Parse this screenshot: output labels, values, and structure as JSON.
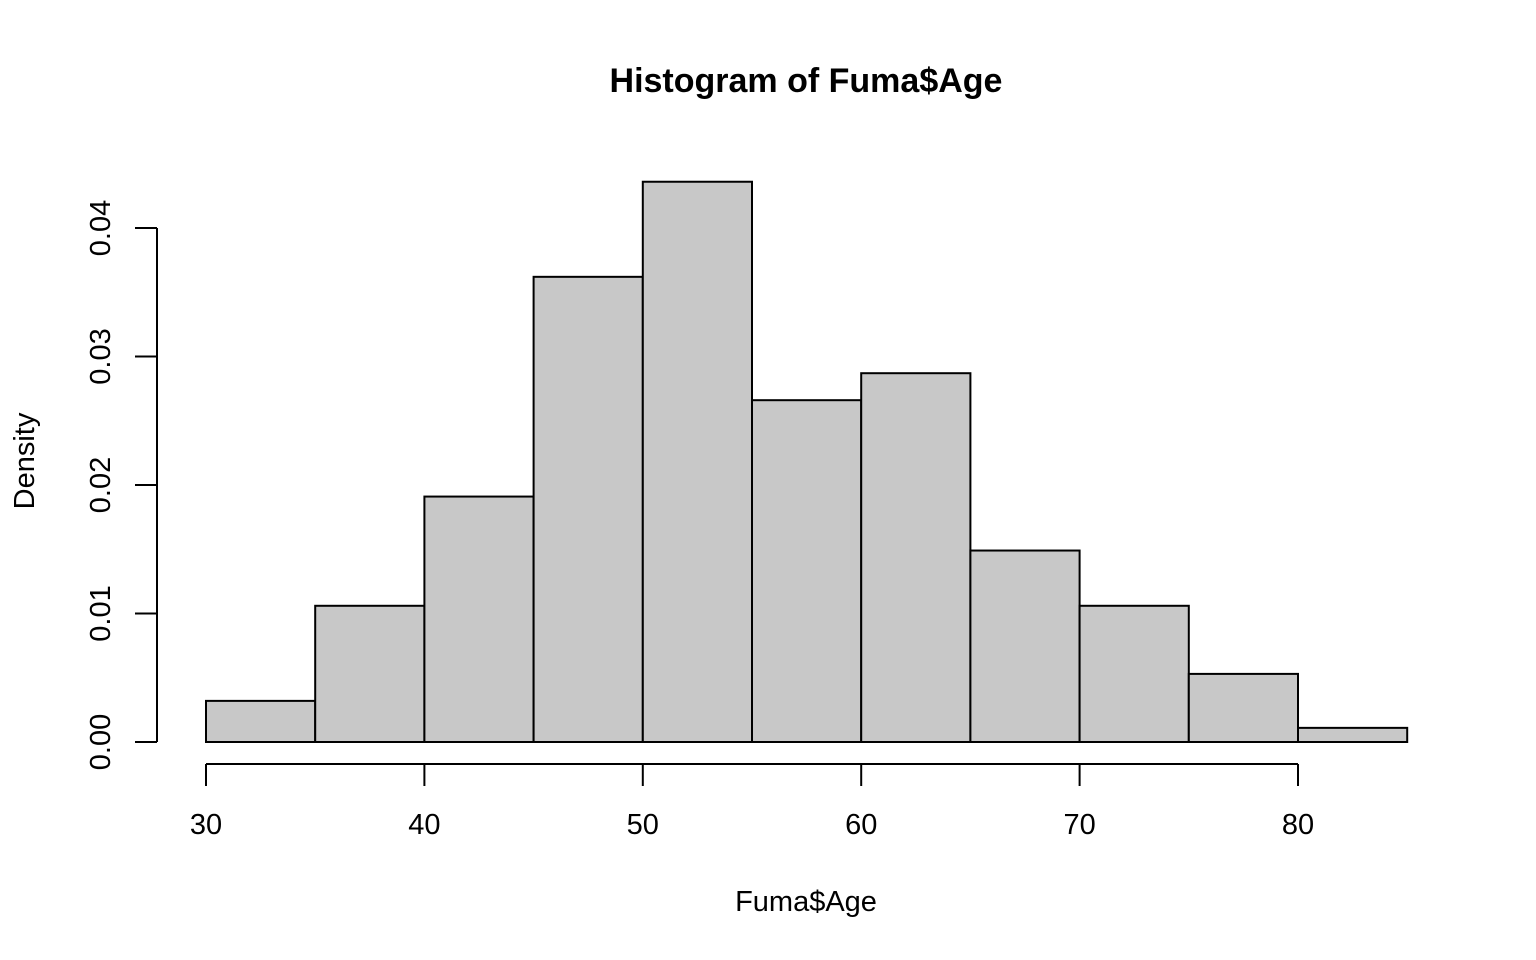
{
  "chart_data": {
    "type": "bar",
    "title": "Histogram of Fuma$Age",
    "xlabel": "Fuma$Age",
    "ylabel": "Density",
    "bins": [
      {
        "start": 30,
        "end": 35,
        "density": 0.0032
      },
      {
        "start": 35,
        "end": 40,
        "density": 0.0106
      },
      {
        "start": 40,
        "end": 45,
        "density": 0.0191
      },
      {
        "start": 45,
        "end": 50,
        "density": 0.0362
      },
      {
        "start": 50,
        "end": 55,
        "density": 0.0436
      },
      {
        "start": 55,
        "end": 60,
        "density": 0.0266
      },
      {
        "start": 60,
        "end": 65,
        "density": 0.0287
      },
      {
        "start": 65,
        "end": 70,
        "density": 0.0149
      },
      {
        "start": 70,
        "end": 75,
        "density": 0.0106
      },
      {
        "start": 75,
        "end": 80,
        "density": 0.0053
      },
      {
        "start": 80,
        "end": 85,
        "density": 0.0011
      }
    ],
    "x_ticks": [
      30,
      40,
      50,
      60,
      70,
      80
    ],
    "x_tick_labels": [
      "30",
      "40",
      "50",
      "60",
      "70",
      "80"
    ],
    "y_ticks": [
      0,
      0.01,
      0.02,
      0.03,
      0.04
    ],
    "y_tick_labels": [
      "0.00",
      "0.01",
      "0.02",
      "0.03",
      "0.04"
    ],
    "xlim": [
      30,
      85
    ],
    "ylim": [
      0,
      0.04
    ],
    "grid": false,
    "bar_fill": "#c8c8c8",
    "bar_edge": "#000000"
  }
}
